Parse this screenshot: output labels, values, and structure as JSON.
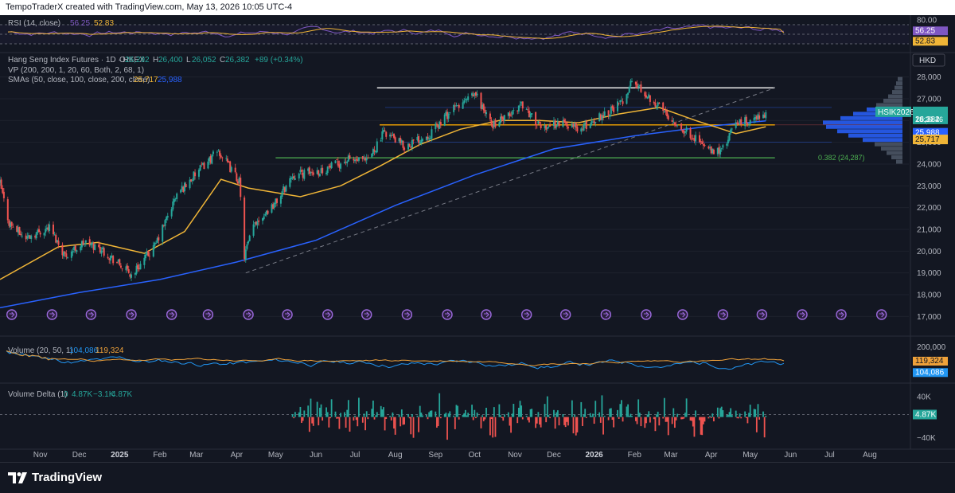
{
  "credit": {
    "text": "TempoTraderX created with TradingView.com, May 13, 2026 10:05 UTC-4"
  },
  "brand": {
    "name": "TradingView"
  },
  "colors": {
    "background": "#131722",
    "up": "#26a69a",
    "down": "#ef5350",
    "sma50": "#f0b537",
    "sma200": "#2962ff",
    "rsi": "#7e57c2",
    "rsi_ma": "#f0b537",
    "level": "#f7a600",
    "fib": "#4caf50",
    "vp": "#6f7b8e",
    "vp_value_area": "#2962ff",
    "vol_short": "#2196f3",
    "vol_long": "#f0a23a"
  },
  "main_legend": {
    "symbol": "Hang Seng Index Futures · 1D · HKEX",
    "ohlc": [
      {
        "label": "O",
        "value": "26,292"
      },
      {
        "label": "H",
        "value": "26,400"
      },
      {
        "label": "L",
        "value": "26,052"
      },
      {
        "label": "C",
        "value": "26,382"
      }
    ],
    "change": "+89 (+0.34%)",
    "vp": "VP (200, 200, 1, 20, 60, Both, 2, 68, 1)",
    "sma_label": "SMAs (50, close, 100, close, 200, close)",
    "sma_values": [
      "25,717",
      "25,988"
    ]
  },
  "currency": "HKD",
  "rsi_legend": {
    "label": "RSI (14, close)",
    "values": [
      "56.25",
      "52.83"
    ]
  },
  "volume_legend": {
    "label": "Volume (20, 50, 1)",
    "values": [
      "104,086",
      "119,324"
    ]
  },
  "delta_legend": {
    "label": "Volume Delta (1)",
    "values": [
      "0",
      "4.87K",
      "−3.1K",
      "4.87K"
    ]
  },
  "price_axis": {
    "ticks": [
      "28,000",
      "27,000",
      "26,000",
      "25,000",
      "24,000",
      "23,000",
      "22,000",
      "21,000",
      "20,000",
      "19,000",
      "18,000",
      "17,000"
    ]
  },
  "rsi_axis": {
    "ticks": [
      "80.00"
    ]
  },
  "volume_axis": {
    "ticks": [
      "200,000"
    ]
  },
  "delta_axis": {
    "ticks": [
      "40K",
      "−40K"
    ]
  },
  "time_axis": {
    "labels": [
      "Nov",
      "Dec",
      "2025",
      "Feb",
      "Mar",
      "Apr",
      "May",
      "Jun",
      "Jul",
      "Aug",
      "Sep",
      "Oct",
      "Nov",
      "Dec",
      "2026",
      "Feb",
      "Mar",
      "Apr",
      "May",
      "Jun",
      "Jul",
      "Aug"
    ]
  },
  "price_labels": {
    "symbol": "HSIK2026",
    "last": "26,382",
    "countdown": "18:39:46",
    "sma200": "25,988",
    "sma50": "25,717"
  },
  "rsi_labels": {
    "rsi": "56.25",
    "rsi_ma": "52.83"
  },
  "volume_labels": {
    "long": "119,324",
    "short": "104,086"
  },
  "delta_labels": {
    "last": "4.87K"
  },
  "fib_label": "0.382 (24,287)",
  "chart_data": {
    "type": "candlestick",
    "instrument": "Hang Seng Index Futures",
    "interval": "1D",
    "x_range": [
      "2024-10-01",
      "2026-08-31"
    ],
    "ylim": [
      16500,
      28500
    ],
    "price_path": [
      [
        "2024-10-01",
        23100
      ],
      [
        "2024-10-08",
        21300
      ],
      [
        "2024-10-20",
        20600
      ],
      [
        "2024-11-08",
        21100
      ],
      [
        "2024-11-20",
        19800
      ],
      [
        "2024-12-05",
        20400
      ],
      [
        "2024-12-18",
        20100
      ],
      [
        "2025-01-10",
        18900
      ],
      [
        "2025-01-28",
        20200
      ],
      [
        "2025-02-14",
        22600
      ],
      [
        "2025-03-06",
        23900
      ],
      [
        "2025-03-18",
        24600
      ],
      [
        "2025-04-03",
        23200
      ],
      [
        "2025-04-07",
        19800
      ],
      [
        "2025-04-15",
        21300
      ],
      [
        "2025-05-02",
        22300
      ],
      [
        "2025-05-14",
        23500
      ],
      [
        "2025-06-05",
        23700
      ],
      [
        "2025-06-26",
        24200
      ],
      [
        "2025-07-10",
        24100
      ],
      [
        "2025-07-24",
        25500
      ],
      [
        "2025-08-08",
        24800
      ],
      [
        "2025-08-28",
        25400
      ],
      [
        "2025-09-12",
        26400
      ],
      [
        "2025-10-02",
        27200
      ],
      [
        "2025-10-14",
        25800
      ],
      [
        "2025-10-28",
        26200
      ],
      [
        "2025-11-06",
        26800
      ],
      [
        "2025-11-20",
        25700
      ],
      [
        "2025-12-08",
        25900
      ],
      [
        "2025-12-22",
        25600
      ],
      [
        "2026-01-08",
        26300
      ],
      [
        "2026-01-22",
        26800
      ],
      [
        "2026-01-30",
        27800
      ],
      [
        "2026-02-12",
        27100
      ],
      [
        "2026-02-26",
        26300
      ],
      [
        "2026-03-10",
        25600
      ],
      [
        "2026-03-20",
        25200
      ],
      [
        "2026-04-02",
        24500
      ],
      [
        "2026-04-10",
        24700
      ],
      [
        "2026-04-20",
        25900
      ],
      [
        "2026-05-04",
        26000
      ],
      [
        "2026-05-13",
        26382
      ]
    ],
    "sma50": [
      [
        "2024-10-01",
        18700
      ],
      [
        "2024-11-15",
        20200
      ],
      [
        "2024-12-15",
        20400
      ],
      [
        "2025-01-20",
        19900
      ],
      [
        "2025-02-20",
        20900
      ],
      [
        "2025-03-20",
        23300
      ],
      [
        "2025-04-10",
        22900
      ],
      [
        "2025-05-20",
        22500
      ],
      [
        "2025-06-20",
        23000
      ],
      [
        "2025-07-20",
        23900
      ],
      [
        "2025-08-20",
        24900
      ],
      [
        "2025-09-20",
        25600
      ],
      [
        "2025-10-20",
        26000
      ],
      [
        "2025-11-20",
        26000
      ],
      [
        "2025-12-20",
        25900
      ],
      [
        "2026-01-20",
        26300
      ],
      [
        "2026-02-20",
        26600
      ],
      [
        "2026-03-20",
        26000
      ],
      [
        "2026-04-20",
        25400
      ],
      [
        "2026-05-13",
        25717
      ]
    ],
    "sma200": [
      [
        "2024-10-01",
        17400
      ],
      [
        "2024-12-01",
        18100
      ],
      [
        "2025-02-01",
        18700
      ],
      [
        "2025-04-01",
        19500
      ],
      [
        "2025-06-01",
        20500
      ],
      [
        "2025-08-01",
        22100
      ],
      [
        "2025-10-01",
        23500
      ],
      [
        "2025-12-01",
        24700
      ],
      [
        "2026-02-01",
        25300
      ],
      [
        "2026-04-01",
        25750
      ],
      [
        "2026-05-13",
        25988
      ]
    ],
    "horizontal_levels": [
      {
        "price": 27500,
        "from": "2025-07-18",
        "to": "2026-05-20",
        "color": "#ffffff"
      },
      {
        "price": 25800,
        "from": "2025-07-20",
        "to": "2026-05-20",
        "color": "#f7a600"
      },
      {
        "price": 24287,
        "from": "2025-05-01",
        "to": "2026-05-20",
        "color": "#4caf50",
        "label": "0.382 (24,287)"
      }
    ],
    "trendline": {
      "from": [
        "2025-04-08",
        19000
      ],
      "to": [
        "2026-05-20",
        27500
      ],
      "style": "dashed"
    },
    "events": [
      "2024-10-10",
      "2024-11-10",
      "2024-12-10",
      "2025-01-10",
      "2025-02-10",
      "2025-03-10",
      "2025-04-10",
      "2025-05-10",
      "2025-06-10",
      "2025-07-10",
      "2025-08-10",
      "2025-09-10",
      "2025-10-10",
      "2025-11-10",
      "2025-12-10",
      "2026-01-10",
      "2026-02-10",
      "2026-03-10",
      "2026-04-10",
      "2026-05-10",
      "2026-06-10",
      "2026-07-10",
      "2026-08-10"
    ],
    "volume_profile": {
      "value_area": [
        25000,
        26600
      ],
      "poc": 25800,
      "bins": [
        [
          24100,
          0.08
        ],
        [
          24300,
          0.14
        ],
        [
          24500,
          0.2
        ],
        [
          24700,
          0.27
        ],
        [
          24900,
          0.35
        ],
        [
          25100,
          0.5
        ],
        [
          25300,
          0.68
        ],
        [
          25500,
          0.82
        ],
        [
          25700,
          0.96
        ],
        [
          25900,
          1.0
        ],
        [
          26100,
          0.78
        ],
        [
          26300,
          0.62
        ],
        [
          26500,
          0.45
        ],
        [
          26700,
          0.33
        ],
        [
          26900,
          0.24
        ],
        [
          27100,
          0.18
        ],
        [
          27300,
          0.13
        ],
        [
          27500,
          0.1
        ],
        [
          27700,
          0.08
        ],
        [
          27900,
          0.06
        ]
      ]
    },
    "rsi": {
      "ylim": [
        20,
        85
      ],
      "last": 56.25,
      "ma": 52.83
    },
    "volume": {
      "ylim": [
        0,
        220000
      ],
      "short_ma": 104086,
      "long_ma": 119324
    },
    "volume_delta": {
      "ylim": [
        -55000,
        60000
      ],
      "last": 4870
    }
  }
}
